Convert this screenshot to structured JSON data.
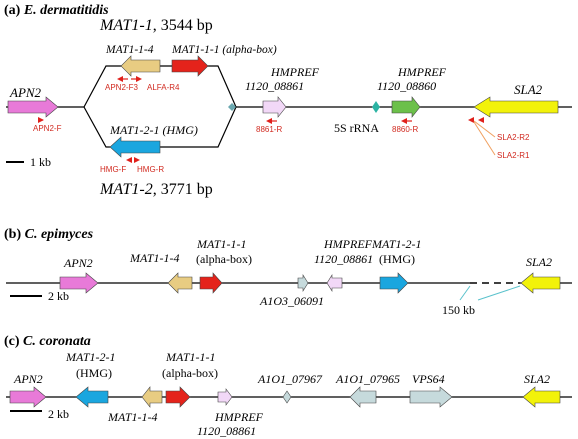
{
  "panel_a": {
    "label_prefix": "(a)",
    "species": "E. dermatitidis",
    "mat11": {
      "name": "MAT1-1",
      "size": ", 3544 bp"
    },
    "mat12": {
      "name": "MAT1-2",
      "size": ", 3771 bp"
    },
    "genes": {
      "apn2": "APN2",
      "mat114": "MAT1-1-4",
      "mat111": "MAT1-1-1 (alpha-box)",
      "mat121": "MAT1-2-1 (HMG)",
      "hmpref1_line1": "HMPREF",
      "hmpref1_line2": "1120_08861",
      "hmpref2_line1": "HMPREF",
      "hmpref2_line2": "1120_08860",
      "rrna": "5S rRNA",
      "sla2": "SLA2"
    },
    "primers": {
      "apn2f": "APN2-F",
      "apn2f3": "APN2-F3",
      "alfar4": "ALFA-R4",
      "hmgf": "HMG-F",
      "hmgr": "HMG-R",
      "r8861": "8861-R",
      "r8860": "8860-R",
      "sla2r2": "SLA2-R2",
      "sla2r1": "SLA2-R1"
    },
    "scale": "1 kb"
  },
  "panel_b": {
    "label_prefix": "(b)",
    "species": "C. epimyces",
    "genes": {
      "apn2": "APN2",
      "mat114": "MAT1-1-4",
      "mat111_line1": "MAT1-1-1",
      "mat111_line2": "(alpha-box)",
      "a103": "A1O3_06091",
      "hmpref_line1": "HMPREF",
      "hmpref_line2": "1120_08861",
      "mat121_line1": "MAT1-2-1",
      "mat121_line2": "(HMG)",
      "sla2": "SLA2"
    },
    "gap": "150 kb",
    "scale": "2 kb"
  },
  "panel_c": {
    "label_prefix": "(c)",
    "species": "C. coronata",
    "genes": {
      "apn2": "APN2",
      "mat121_line1": "MAT1-2-1",
      "mat121_line2": "(HMG)",
      "mat114": "MAT1-1-4",
      "mat111_line1": "MAT1-1-1",
      "mat111_line2": "(alpha-box)",
      "hmpref_line1": "HMPREF",
      "hmpref_line2": "1120_08861",
      "a7967": "A1O1_07967",
      "a7965": "A1O1_07965",
      "vps64": "VPS64",
      "sla2": "SLA2"
    },
    "scale": "2 kb"
  },
  "colors": {
    "apn2": "#e87ad8",
    "mat114": "#e8cc82",
    "mat111": "#e4231b",
    "mat121": "#1aa6df",
    "hmpref": "#f2d8f7",
    "hmpref2": "#6cc04a",
    "sla2": "#f2f20a",
    "small_grey": "#c6dadc",
    "primer": "#e0201b",
    "callout": "#f0a060",
    "gap_line": "#5bc2cc"
  }
}
